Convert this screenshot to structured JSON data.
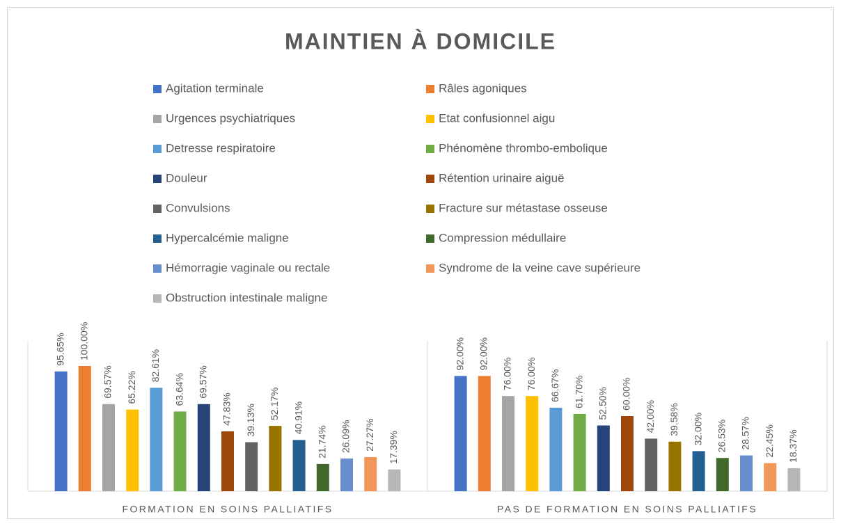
{
  "chart_data": {
    "type": "bar",
    "title": "MAINTIEN À DOMICILE",
    "categories": [
      "FORMATION EN SOINS PALLIATIFS",
      "PAS DE FORMATION EN SOINS PALLIATIFS"
    ],
    "ylim": [
      0,
      100
    ],
    "series": [
      {
        "name": "Agitation terminale",
        "color": "#4472c4",
        "values": [
          95.65,
          92.0
        ],
        "value_labels": [
          "95.65%",
          "92.00%"
        ]
      },
      {
        "name": "Râles agoniques",
        "color": "#ed7d31",
        "values": [
          100.0,
          92.0
        ],
        "value_labels": [
          "100.00%",
          "92.00%"
        ]
      },
      {
        "name": "Urgences psychiatriques",
        "color": "#a5a5a5",
        "values": [
          69.57,
          76.0
        ],
        "value_labels": [
          "69.57%",
          "76.00%"
        ]
      },
      {
        "name": "Etat confusionnel aigu",
        "color": "#ffc000",
        "values": [
          65.22,
          76.0
        ],
        "value_labels": [
          "65.22%",
          "76.00%"
        ]
      },
      {
        "name": "Detresse respiratoire",
        "color": "#5b9bd5",
        "values": [
          82.61,
          66.67
        ],
        "value_labels": [
          "82.61%",
          "66.67%"
        ]
      },
      {
        "name": "Phénomène thrombo-embolique",
        "color": "#70ad47",
        "values": [
          63.64,
          61.7
        ],
        "value_labels": [
          "63.64%",
          "61.70%"
        ]
      },
      {
        "name": "Douleur",
        "color": "#264478",
        "values": [
          69.57,
          52.5
        ],
        "value_labels": [
          "69.57%",
          "52.50%"
        ]
      },
      {
        "name": "Rétention urinaire aiguë",
        "color": "#9e480e",
        "values": [
          47.83,
          60.0
        ],
        "value_labels": [
          "47.83%",
          "60.00%"
        ]
      },
      {
        "name": "Convulsions",
        "color": "#636363",
        "values": [
          39.13,
          42.0
        ],
        "value_labels": [
          "39.13%",
          "42.00%"
        ]
      },
      {
        "name": "Fracture sur métastase osseuse",
        "color": "#997300",
        "values": [
          52.17,
          39.58
        ],
        "value_labels": [
          "52.17%",
          "39.58%"
        ]
      },
      {
        "name": "Hypercalcémie maligne",
        "color": "#255e91",
        "values": [
          40.91,
          32.0
        ],
        "value_labels": [
          "40.91%",
          "32.00%"
        ]
      },
      {
        "name": "Compression médullaire",
        "color": "#43682b",
        "values": [
          21.74,
          26.53
        ],
        "value_labels": [
          "21.74%",
          "26.53%"
        ]
      },
      {
        "name": "Hémorragie vaginale ou rectale",
        "color": "#698ed0",
        "values": [
          26.09,
          28.57
        ],
        "value_labels": [
          "26.09%",
          "28.57%"
        ]
      },
      {
        "name": "Syndrome de la veine cave supérieure",
        "color": "#f1975a",
        "values": [
          27.27,
          22.45
        ],
        "value_labels": [
          "27.27%",
          "22.45%"
        ]
      },
      {
        "name": "Obstruction intestinale maligne",
        "color": "#b7b7b7",
        "values": [
          17.39,
          18.37
        ],
        "value_labels": [
          "17.39%",
          "18.37%"
        ]
      }
    ]
  }
}
